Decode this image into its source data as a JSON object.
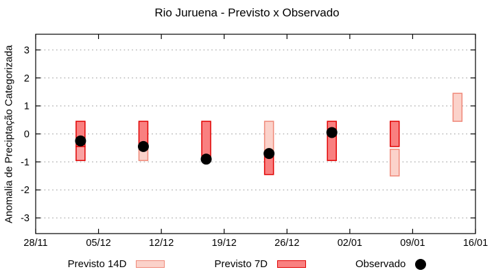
{
  "chart_data": {
    "type": "bar",
    "title": "Rio Juruena - Previsto x Observado",
    "ylabel": "Anomalia de Preciptação Categorizada",
    "xlabel": "",
    "ylim": [
      -3.56,
      3.56
    ],
    "yticks": [
      3,
      2,
      1,
      0,
      -1,
      -2,
      -3
    ],
    "x_axis": {
      "tick_labels": [
        "28/11",
        "05/12",
        "12/12",
        "19/12",
        "26/12",
        "02/01",
        "09/01",
        "16/01"
      ],
      "tick_days": [
        0,
        7,
        14,
        21,
        28,
        35,
        42,
        49
      ],
      "total_days": 49
    },
    "grid": "horizontal-dotted",
    "legend_position": "bottom",
    "legend": [
      {
        "label": "Previsto 14D",
        "style": "previsto14d"
      },
      {
        "label": "Previsto 7D",
        "style": "previsto7d"
      },
      {
        "label": "Observado",
        "style": "observed"
      }
    ],
    "bars": [
      {
        "date": "03/12",
        "day": 5,
        "segments": [
          {
            "from": 0.45,
            "to": -0.45,
            "style": "previsto7d"
          },
          {
            "from": -0.45,
            "to": -0.95,
            "style": "previsto7d_light"
          }
        ],
        "observed": -0.25
      },
      {
        "date": "10/12",
        "day": 12,
        "segments": [
          {
            "from": 0.45,
            "to": -0.45,
            "style": "previsto7d"
          },
          {
            "from": -0.45,
            "to": -0.95,
            "style": "previsto14d"
          }
        ],
        "observed": -0.45
      },
      {
        "date": "17/12",
        "day": 19,
        "segments": [
          {
            "from": 0.45,
            "to": -0.95,
            "style": "previsto7d"
          }
        ],
        "observed": -0.9
      },
      {
        "date": "24/12",
        "day": 26,
        "segments": [
          {
            "from": 0.45,
            "to": -0.7,
            "style": "previsto14d"
          },
          {
            "from": -0.7,
            "to": -1.45,
            "style": "previsto7d"
          }
        ],
        "observed": -0.7
      },
      {
        "date": "31/12",
        "day": 33,
        "segments": [
          {
            "from": 0.45,
            "to": -0.95,
            "style": "previsto7d"
          }
        ],
        "observed": 0.05
      },
      {
        "date": "07/01",
        "day": 40,
        "segments": [
          {
            "from": 0.45,
            "to": -0.45,
            "style": "previsto7d"
          },
          {
            "from": -0.55,
            "to": -1.5,
            "style": "previsto14d"
          }
        ],
        "observed": null
      },
      {
        "date": "14/01",
        "day": 47,
        "segments": [
          {
            "from": 1.45,
            "to": 0.45,
            "style": "previsto14d"
          }
        ],
        "observed": null
      }
    ],
    "colors": {
      "previsto7d_fill": "#f98080",
      "previsto7d_stroke": "#e00000",
      "previsto7d_light_fill": "#f9a2a2",
      "previsto7d_light_stroke": "#e00000",
      "previsto14d_fill": "#fbd2ca",
      "previsto14d_stroke": "#ef8878",
      "observed": "#000000",
      "grid": "#a8a8a8",
      "frame": "#000000"
    }
  }
}
